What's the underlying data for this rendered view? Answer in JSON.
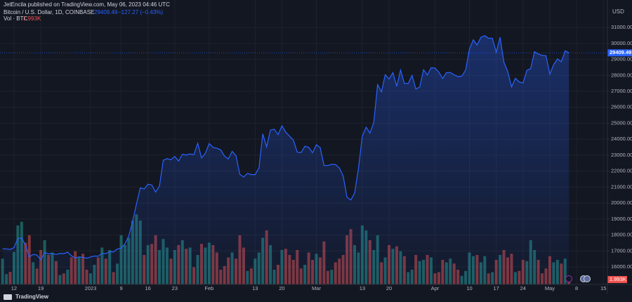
{
  "publisher": "JetEncila published on TradingView.com, May 06, 2023 04:46 UTC",
  "footer": "TradingView",
  "chart_data": {
    "type": "area",
    "title": "Bitcoin / U.S. Dollar, 1D, COINBASE",
    "change_label": "−127.27 (−0.43%)",
    "y_axis_label": "USD",
    "color": "#2962ff",
    "grid": true,
    "ylim": [
      14900,
      32720
    ],
    "yticks": [
      {
        "value": 16000,
        "label": "16000.00"
      },
      {
        "value": 17000,
        "label": "17000.00"
      },
      {
        "value": 18000,
        "label": "18000.00"
      },
      {
        "value": 19000,
        "label": "19000.00"
      },
      {
        "value": 20000,
        "label": "20000.00"
      },
      {
        "value": 21000,
        "label": "21000.00"
      },
      {
        "value": 22000,
        "label": "22000.00"
      },
      {
        "value": 23000,
        "label": "23000.00"
      },
      {
        "value": 24000,
        "label": "24000.00"
      },
      {
        "value": 25000,
        "label": "25000.00"
      },
      {
        "value": 26000,
        "label": "26000.00"
      },
      {
        "value": 27000,
        "label": "27000.00"
      },
      {
        "value": 28000,
        "label": "28000.00"
      },
      {
        "value": 29000,
        "label": "29000.00"
      },
      {
        "value": 30000,
        "label": "30000.00"
      },
      {
        "value": 31000,
        "label": "31000.00"
      }
    ],
    "categories": [
      null,
      null,
      null,
      "12",
      null,
      null,
      null,
      null,
      null,
      null,
      "19",
      null,
      null,
      null,
      null,
      null,
      null,
      null,
      null,
      null,
      null,
      null,
      null,
      "2023",
      null,
      null,
      null,
      null,
      null,
      null,
      null,
      "9",
      null,
      null,
      null,
      null,
      null,
      null,
      "16",
      null,
      null,
      null,
      null,
      null,
      null,
      "23",
      null,
      null,
      null,
      null,
      null,
      null,
      null,
      null,
      "Feb",
      null,
      null,
      null,
      null,
      null,
      null,
      null,
      null,
      null,
      null,
      null,
      "13",
      null,
      null,
      null,
      null,
      null,
      null,
      "20",
      null,
      null,
      null,
      null,
      null,
      null,
      null,
      null,
      "Mar",
      null,
      null,
      null,
      null,
      null,
      null,
      null,
      null,
      null,
      null,
      null,
      "13",
      null,
      null,
      null,
      null,
      null,
      null,
      "20",
      null,
      null,
      null,
      null,
      null,
      null,
      null,
      null,
      null,
      null,
      null,
      "Apr",
      null,
      null,
      null,
      null,
      null,
      null,
      null,
      null,
      "10",
      null,
      null,
      null,
      null,
      null,
      null,
      "17",
      null,
      null,
      null,
      null,
      null,
      null,
      "24",
      null,
      null,
      null,
      null,
      null,
      null,
      "May",
      null,
      null,
      null,
      null,
      null,
      null,
      "8",
      null,
      null,
      null,
      null,
      null,
      null,
      "15",
      null
    ],
    "values": [
      17130,
      17130,
      17090,
      17210,
      17780,
      17810,
      17360,
      16630,
      16780,
      16740,
      16440,
      16900,
      16820,
      16830,
      16780,
      16840,
      16830,
      16920,
      16700,
      16550,
      16630,
      16600,
      16540,
      16620,
      16680,
      16670,
      16850,
      16830,
      16950,
      16940,
      17120,
      17180,
      17440,
      17940,
      18850,
      19930,
      20950,
      20880,
      21180,
      21130,
      20680,
      21070,
      22680,
      22780,
      22710,
      22920,
      22630,
      23060,
      23010,
      23080,
      23030,
      23740,
      22830,
      23130,
      23730,
      23490,
      23430,
      23330,
      22940,
      22760,
      23240,
      22960,
      21800,
      21630,
      21860,
      21780,
      21780,
      22200,
      24330,
      23520,
      24570,
      24630,
      24280,
      24840,
      24440,
      24190,
      23940,
      23190,
      23160,
      23560,
      23490,
      23150,
      23650,
      23470,
      22360,
      22350,
      22430,
      22410,
      22200,
      21700,
      20360,
      20190,
      20630,
      22160,
      24200,
      24750,
      24380,
      25050,
      27420,
      26970,
      28040,
      27770,
      28170,
      27310,
      28330,
      27490,
      27490,
      27990,
      27140,
      27270,
      28350,
      28030,
      28480,
      28460,
      28200,
      27800,
      28170,
      28180,
      28040,
      27920,
      27950,
      28330,
      29650,
      30230,
      29900,
      30390,
      30490,
      30320,
      30320,
      29440,
      30390,
      28820,
      28250,
      27280,
      27820,
      27590,
      27520,
      28310,
      28420,
      29480,
      29340,
      29250,
      29230,
      28070,
      28670,
      29030,
      28850,
      29540,
      29409.49,
      null,
      null,
      null,
      null,
      null,
      null,
      null,
      null,
      null,
      null
    ],
    "volume": {
      "title": "Vol · BTC",
      "last_value_label": "1.993K",
      "up_color": "#26a69a",
      "down_color": "#ef5350",
      "lim": [
        0,
        40000
      ],
      "values": [
        10500,
        4200,
        5100,
        13200,
        24000,
        25500,
        17000,
        20000,
        9000,
        6500,
        14000,
        18000,
        12000,
        13000,
        9500,
        3800,
        4500,
        6000,
        11000,
        13500,
        11000,
        12500,
        6000,
        4500,
        8000,
        11000,
        15000,
        10500,
        14000,
        5000,
        8500,
        20000,
        16000,
        19000,
        26000,
        28500,
        26000,
        12000,
        16000,
        16500,
        20000,
        14000,
        18500,
        15000,
        10500,
        14000,
        16000,
        18000,
        14500,
        15000,
        7000,
        12000,
        16500,
        15000,
        17000,
        16000,
        13000,
        6000,
        7500,
        11000,
        13000,
        10500,
        20000,
        15000,
        5500,
        6500,
        10500,
        13000,
        19000,
        22000,
        16000,
        6000,
        8000,
        14000,
        14500,
        12000,
        10000,
        14000,
        6500,
        8000,
        13000,
        10000,
        12500,
        11000,
        17500,
        5500,
        6000,
        9000,
        10500,
        12000,
        20000,
        22500,
        16000,
        13000,
        24000,
        22000,
        18000,
        14000,
        20000,
        9000,
        11000,
        16000,
        14500,
        15500,
        13500,
        11500,
        5000,
        6000,
        12000,
        9500,
        10000,
        12000,
        11000,
        4500,
        5000,
        10000,
        9000,
        10500,
        8500,
        6000,
        3500,
        5500,
        13000,
        11500,
        12000,
        9000,
        11500,
        4500,
        5000,
        10000,
        12000,
        14000,
        11000,
        12500,
        5000,
        5500,
        10000,
        9500,
        18000,
        14000,
        10000,
        4500,
        6500,
        11500,
        9000,
        10000,
        8500,
        10500,
        1993,
        null,
        null,
        null,
        null,
        null,
        null,
        null,
        null,
        null,
        null
      ]
    }
  }
}
